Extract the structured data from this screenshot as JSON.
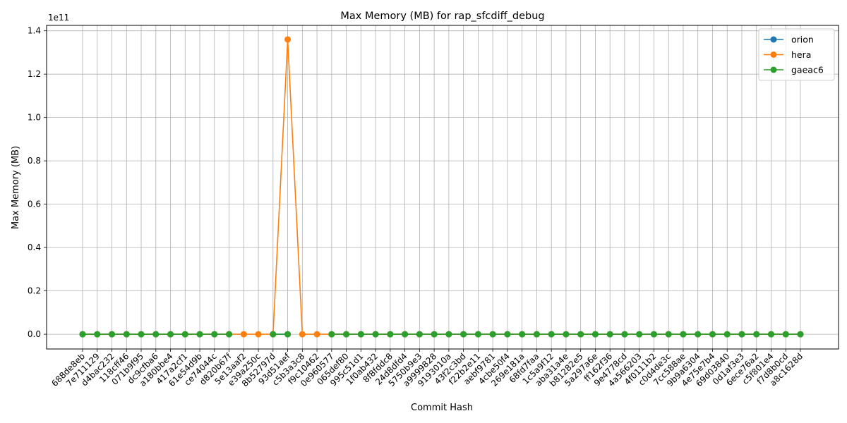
{
  "chart_data": {
    "type": "line",
    "title": "Max Memory (MB) for rap_sfcdiff_debug",
    "xlabel": "Commit Hash",
    "ylabel": "Max Memory (MB)",
    "y_scale_label": "1e11",
    "y_ticks": [
      "0.0",
      "0.2",
      "0.4",
      "0.6",
      "0.8",
      "1.0",
      "1.2",
      "1.4"
    ],
    "ylim": [
      -6800000000,
      142500000000
    ],
    "grid": true,
    "legend_position": "top-right",
    "categories": [
      "688de8eb",
      "7e711129",
      "d4bac232",
      "118cff46",
      "071b9f95",
      "dc9cfba6",
      "a180bbe4",
      "417a2cf1",
      "61e54d9b",
      "ce74044c",
      "d820b67f",
      "5e13aaf2",
      "e39a250c",
      "8b52797d",
      "93d51aef",
      "c5b3a3c8",
      "f9c10462",
      "0e960577",
      "065def80",
      "995c51d1",
      "1f0ab432",
      "8f8fddc8",
      "24d8dfd4",
      "5750b9e3",
      "a9999828",
      "9193010a",
      "43f2c3bd",
      "f22b2e11",
      "aebf9781",
      "4cbe50f4",
      "269e181a",
      "68fd7faa",
      "1c5a9f12",
      "aba31a4e",
      "b81282e5",
      "5a297a6e",
      "ff162f36",
      "9e4778cd",
      "4a566203",
      "4f0111b2",
      "c0d4de3c",
      "7cc588ae",
      "9b9a6304",
      "4e75e7b4",
      "69d03840",
      "0d1af3e3",
      "6ece76a2",
      "c5f801e4",
      "f7d8b0cd",
      "a8c1628d"
    ],
    "series": [
      {
        "name": "orion",
        "color": "#1f77b4",
        "values": [
          0,
          0,
          0,
          0,
          0,
          0,
          0,
          0,
          0,
          0,
          0,
          null,
          null,
          0,
          0,
          null,
          null,
          0,
          0,
          0,
          0,
          0,
          0,
          0,
          0,
          0,
          0,
          0,
          0,
          0,
          0,
          0,
          0,
          0,
          0,
          0,
          0,
          0,
          0,
          0,
          0,
          0,
          0,
          0,
          0,
          0,
          0,
          0,
          0,
          0
        ]
      },
      {
        "name": "hera",
        "color": "#ff7f0e",
        "values": [
          0,
          0,
          0,
          0,
          0,
          0,
          0,
          0,
          0,
          0,
          0,
          0,
          0,
          0,
          136000000000,
          0,
          0,
          0,
          0,
          0,
          0,
          0,
          0,
          0,
          0,
          0,
          0,
          0,
          0,
          0,
          0,
          0,
          0,
          0,
          0,
          0,
          0,
          0,
          0,
          0,
          0,
          0,
          0,
          0,
          0,
          0,
          0,
          0,
          0,
          0
        ]
      },
      {
        "name": "gaeac6",
        "color": "#2ca02c",
        "values": [
          0,
          0,
          0,
          0,
          0,
          0,
          0,
          0,
          0,
          0,
          0,
          null,
          null,
          0,
          0,
          null,
          null,
          0,
          0,
          0,
          0,
          0,
          0,
          0,
          0,
          0,
          0,
          0,
          0,
          0,
          0,
          0,
          0,
          0,
          0,
          0,
          0,
          0,
          0,
          0,
          0,
          0,
          0,
          0,
          0,
          0,
          0,
          0,
          0,
          0
        ]
      }
    ]
  }
}
